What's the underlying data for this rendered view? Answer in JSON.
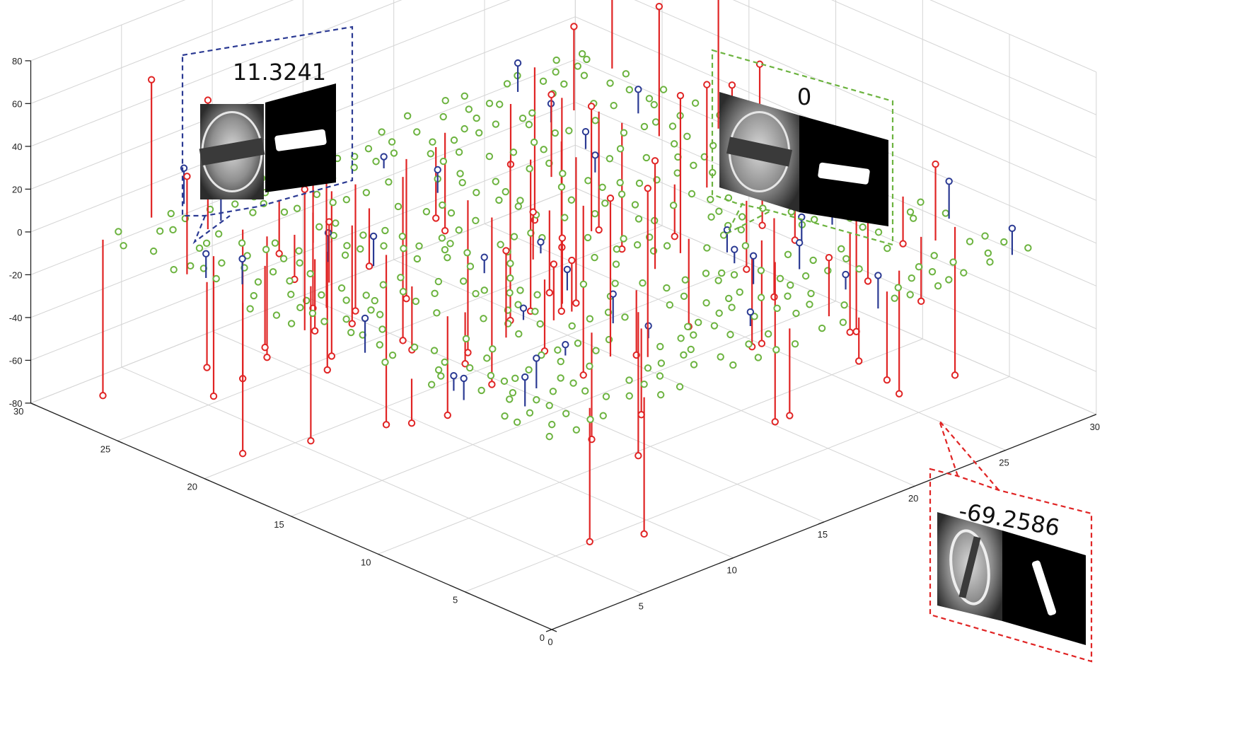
{
  "chart_data": {
    "type": "scatter",
    "subtype": "3d-stem",
    "title": "",
    "xlabel": "",
    "ylabel": "",
    "zlabel": "",
    "x_ticks": [
      "0",
      "5",
      "10",
      "15",
      "20",
      "25",
      "30"
    ],
    "y_ticks": [
      "0",
      "5",
      "10",
      "15",
      "20",
      "25",
      "30"
    ],
    "z_ticks": [
      "80",
      "60",
      "40",
      "20",
      "0",
      "-20",
      "-40",
      "-60",
      "-80"
    ],
    "xlim": [
      0,
      30
    ],
    "ylim": [
      0,
      30
    ],
    "zlim": [
      -80,
      80
    ],
    "grid": true,
    "grid_size": 27,
    "series": [
      {
        "color": "#6cb33f",
        "marker": "circle"
      },
      {
        "color": "#2b3a93",
        "marker": "circle"
      },
      {
        "color": "#e02424",
        "marker": "circle"
      }
    ],
    "annotations": [
      {
        "x": 2,
        "y": 22,
        "z": 11.3241,
        "label": "11.3241",
        "color": "#2b3a93"
      },
      {
        "x": 22,
        "y": 26,
        "z": 0,
        "label": "0",
        "color": "#6cb33f"
      },
      {
        "x": 27,
        "y": 5,
        "z": -69.2586,
        "label": "-69.2586",
        "color": "#e02424"
      }
    ]
  },
  "colors": {
    "grid": "#d4d4d4",
    "axis": "#222222",
    "zero": "#6cb33f",
    "positive": "#2b3a93",
    "outlier": "#e02424"
  }
}
